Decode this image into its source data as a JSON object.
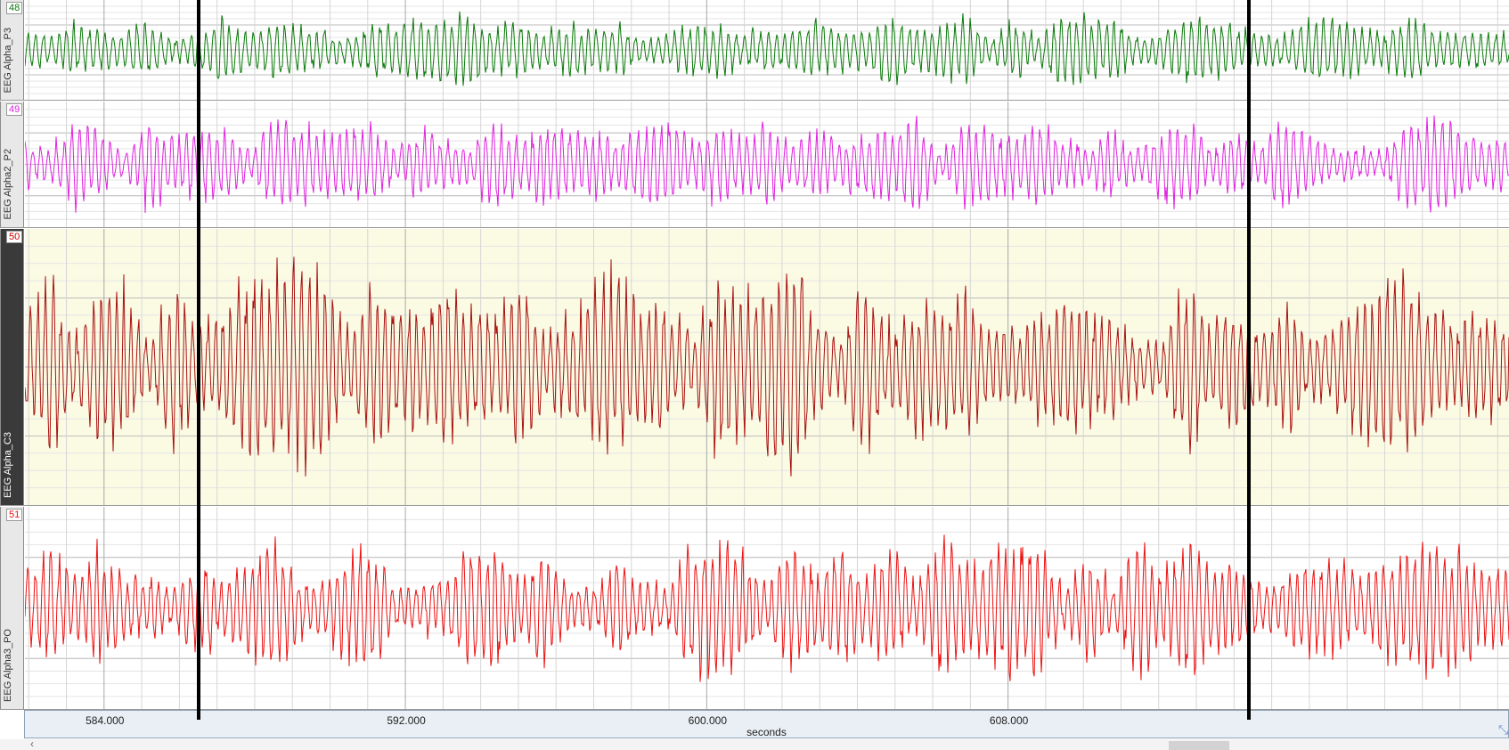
{
  "window": {
    "axis_unit": "seconds",
    "time_range": [
      581.9,
      621.3
    ],
    "ticks": [
      "584.000",
      "592.000",
      "600.000",
      "608.000"
    ],
    "tick_values": [
      584,
      592,
      600,
      608
    ],
    "cursors": [
      586.5,
      614.4
    ]
  },
  "channels": [
    {
      "number": "48",
      "name": "EEG Alpha_P3",
      "color": "#0a7a0a",
      "number_color": "#0a7a0a",
      "background": "#ffffff",
      "active": false
    },
    {
      "number": "49",
      "name": "EEG Alpha2_P2",
      "color": "#e020e0",
      "number_color": "#e020e0",
      "background": "#ffffff",
      "active": false
    },
    {
      "number": "50",
      "name": "EEG Alpha_C3",
      "color": "#aa1010",
      "number_color": "#cc0000",
      "background": "#fbfbe4",
      "active": true
    },
    {
      "number": "51",
      "name": "EEG Alpha3_PO",
      "color": "#ee1010",
      "number_color": "#ee1010",
      "background": "#ffffff",
      "active": false
    }
  ],
  "scroll": {
    "left_arrow": "‹",
    "corner": "⤡"
  }
}
